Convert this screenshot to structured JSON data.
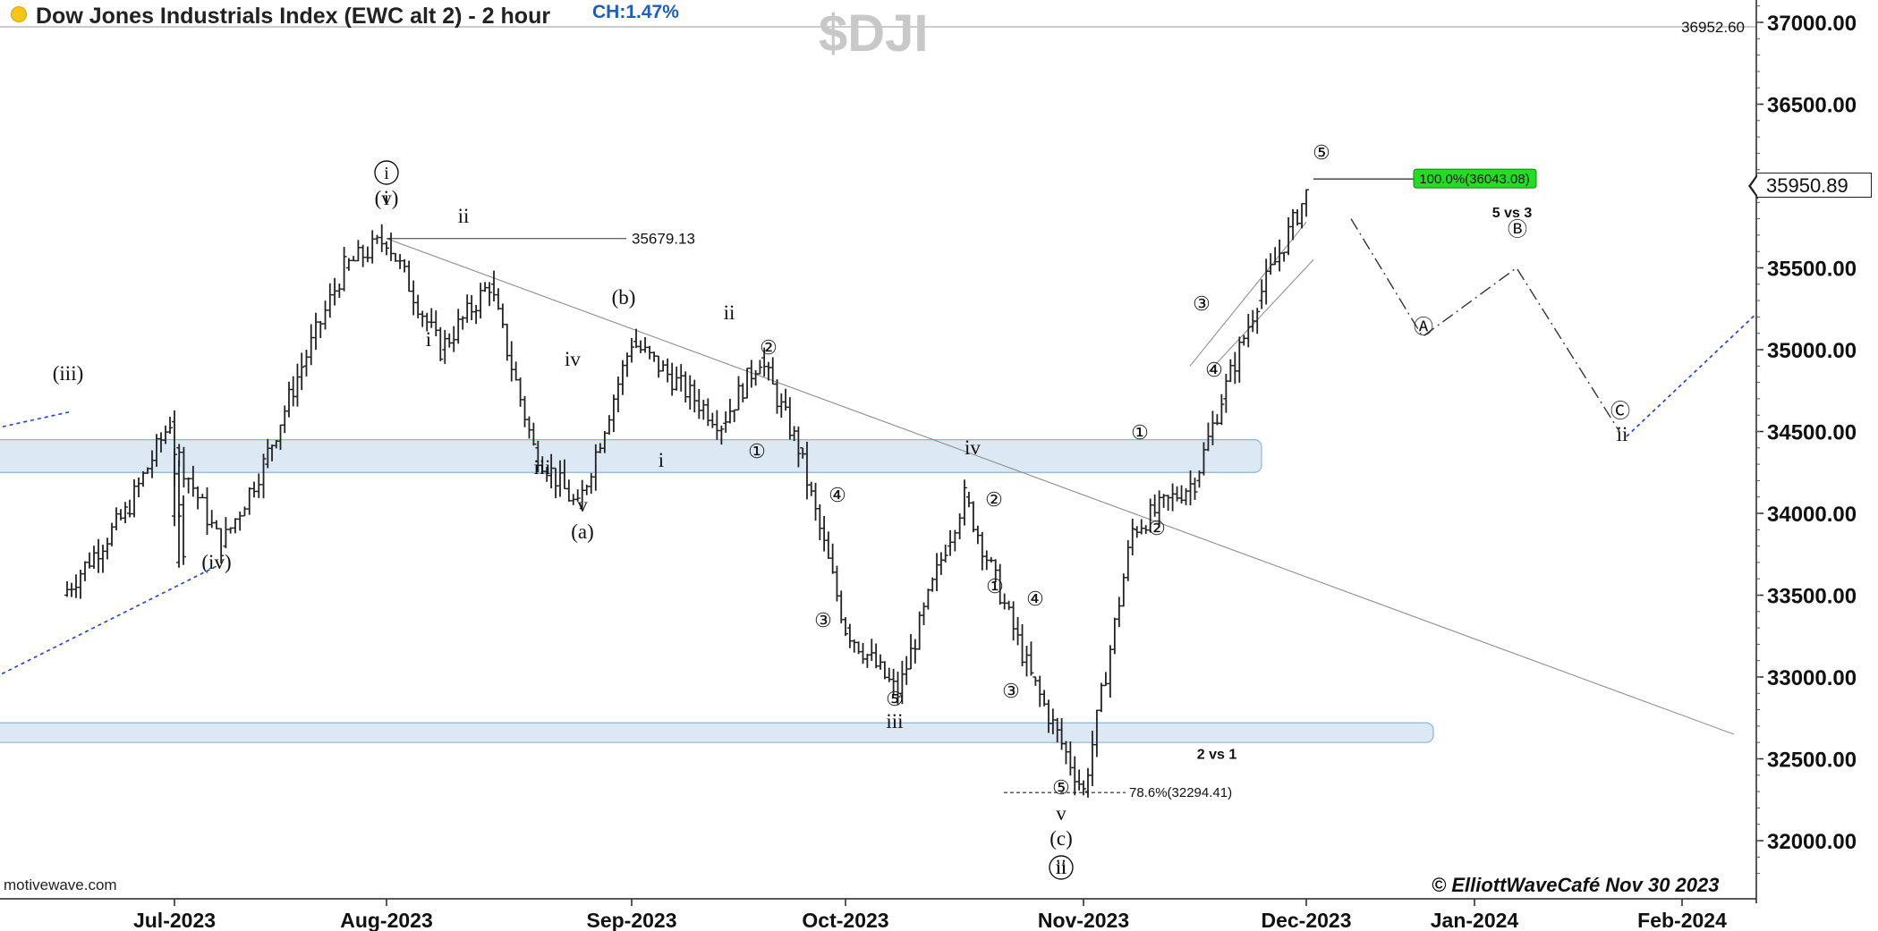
{
  "header": {
    "title": "Dow Jones Industrials Index (EWC alt 2) - 2 hour",
    "change": "CH:1.47%",
    "symbol": "$DJI"
  },
  "footer": {
    "brand": "motivewave.com",
    "credit": "© ElliottWaveCafé Nov 30 2023"
  },
  "colors": {
    "price_bars": "#222222",
    "zone_fill": "#dce9f5",
    "zone_stroke": "#8fb4d6",
    "trend_blue": "#1f3fd6",
    "fib_target": "#22dd22",
    "header_accent": "#1a5fc8"
  },
  "icons": {
    "status_dot": "yellow-circle"
  },
  "chart_data": {
    "type": "ohlc-bar",
    "title": "Dow Jones Industrials Index (EWC alt 2) - 2 hour",
    "timeframe": "2 hour",
    "ylim": [
      31700,
      37100
    ],
    "y_ticks": [
      "37000.00",
      "36500.00",
      "36000.00",
      "35500.00",
      "35000.00",
      "34500.00",
      "34000.00",
      "33500.00",
      "33000.00",
      "32500.00",
      "32000.00"
    ],
    "x_ticks": [
      "Jul-2023",
      "Aug-2023",
      "Sep-2023",
      "Oct-2023",
      "Nov-2023",
      "Dec-2023",
      "Jan-2024",
      "Feb-2024"
    ],
    "last_price": "35950.89",
    "high_marker": "36952.60",
    "price_path": [
      [
        "Jun-2023 ~mid",
        33500
      ],
      [
        "Jun-2023 ~late",
        34000
      ],
      [
        "Jun-2023 end",
        34560
      ],
      [
        "Jun-2023 end+",
        33700
      ],
      [
        "Jul-2023 start",
        34400
      ],
      [
        "Jul-2023 ~week1",
        33800
      ],
      [
        "Jul-2023 ~week2",
        34300
      ],
      [
        "Jul-2023 ~week3",
        34900
      ],
      [
        "Jul-2023 ~week4",
        35500
      ],
      [
        "Aug-2023 start",
        35679
      ],
      [
        "Aug-2023 ~week1",
        35000
      ],
      [
        "Aug-2023 ~week2",
        35400
      ],
      [
        "Aug-2023 ~week3",
        34400
      ],
      [
        "Aug-2023 ~late",
        34030
      ],
      [
        "Sep-2023 start",
        35050
      ],
      [
        "Sep-2023 ~week2",
        34550
      ],
      [
        "Sep-2023 ~week3",
        34950
      ],
      [
        "Sep-2023 ~late",
        34400
      ],
      [
        "Oct-2023 start",
        33300
      ],
      [
        "Oct-2023 ~week1",
        32900
      ],
      [
        "Oct-2023 ~week2",
        33800
      ],
      [
        "Oct-2023 ~mid",
        34100
      ],
      [
        "Oct-2023 ~late",
        33000
      ],
      [
        "Nov-2023 start",
        32300
      ],
      [
        "Nov-2023 ~week1",
        33900
      ],
      [
        "Nov-2023 ~mid",
        34200
      ],
      [
        "Nov-2023 ~mid+",
        34700
      ],
      [
        "Nov-2023 ~late",
        35300
      ],
      [
        "Dec-2023 start",
        35950
      ]
    ],
    "projection": [
      [
        "Dec-2023 ~week1",
        35800
      ],
      [
        "Dec-2023 ~late",
        35080
      ],
      [
        "Jan-2024 start",
        35500
      ],
      [
        "Jan-2024 ~late",
        34500
      ]
    ],
    "trendline_label": "35679.13",
    "fib_levels": [
      "78.6%(32294.41)",
      "100.0%(36043.08)"
    ],
    "annotations": [
      "5 vs 3",
      "2 vs 1"
    ],
    "support_zones": [
      "34250-34450",
      "32600-32720"
    ],
    "wave_labels": [
      "(iii)",
      "(iv)",
      "i",
      "(v)",
      "ii",
      "i",
      "iii",
      "iv",
      "v",
      "(a)",
      "(b)",
      "i",
      "ii",
      "①",
      "②",
      "③",
      "④",
      "⑤",
      "iii",
      "iv",
      "①",
      "②",
      "③",
      "④",
      "⑤",
      "v",
      "(c)",
      "ii",
      "①",
      "②",
      "③",
      "④",
      "⑤",
      "Ⓐ",
      "Ⓑ",
      "Ⓒ",
      "ii"
    ]
  }
}
